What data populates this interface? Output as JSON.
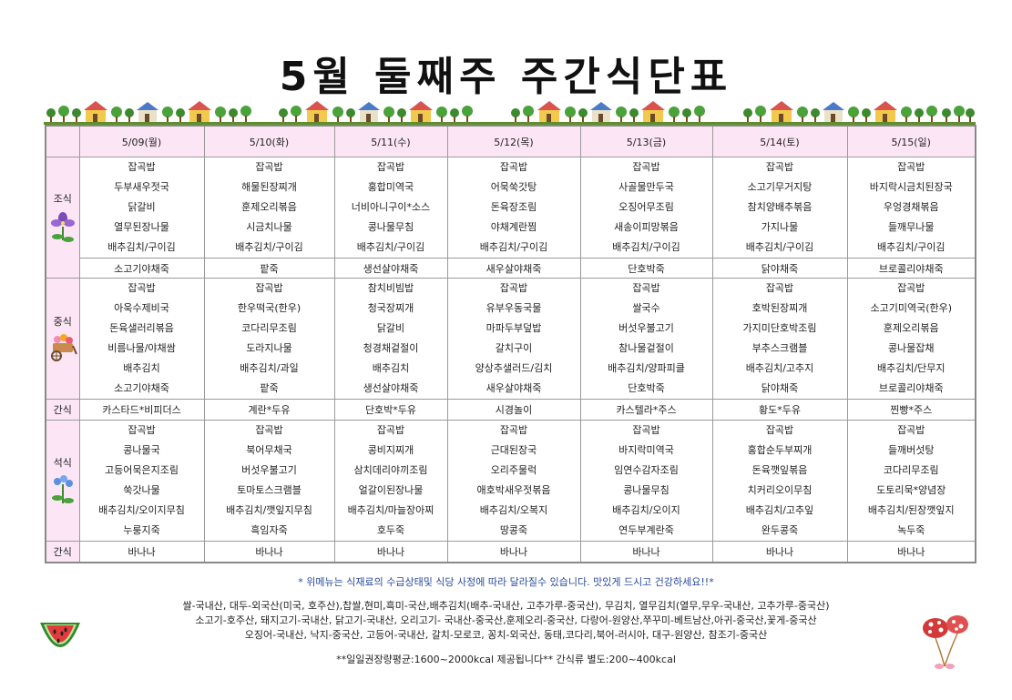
{
  "title": "5월 둘째주 주간식단표",
  "days": [
    "5/09(월)",
    "5/10(화)",
    "5/11(수)",
    "5/12(목)",
    "5/13(금)",
    "5/14(토)",
    "5/15(일)"
  ],
  "breakfast": {
    "label": "조식",
    "items": [
      [
        "잡곡밥",
        "두부새우젓국",
        "닭갈비",
        "열무된장나물",
        "배추김치/구이김"
      ],
      [
        "잡곡밥",
        "해물된장찌개",
        "훈제오리볶음",
        "시금치나물",
        "배추김치/구이김"
      ],
      [
        "잡곡밥",
        "홍합미역국",
        "너비아니구이*소스",
        "콩나물무침",
        "배추김치/구이김"
      ],
      [
        "잡곡밥",
        "어묵쑥갓탕",
        "돈육장조림",
        "야채계란찜",
        "배추김치/구이김"
      ],
      [
        "잡곡밥",
        "사골물만두국",
        "오징어무조림",
        "새송이피망볶음",
        "배추김치/구이김"
      ],
      [
        "잡곡밥",
        "소고기무거지탕",
        "참치양배추볶음",
        "가지나물",
        "배추김치/구이김"
      ],
      [
        "잡곡밥",
        "바지락시금치된장국",
        "우엉경채볶음",
        "들깨무나물",
        "배추김치/구이김"
      ]
    ],
    "porridge": [
      "소고기야채죽",
      "팥죽",
      "생선살야채죽",
      "새우살야채죽",
      "단호박죽",
      "닭야채죽",
      "브로콜리야채죽"
    ]
  },
  "lunch": {
    "label": "중식",
    "items": [
      [
        "잡곡밥",
        "아욱수제비국",
        "돈육샐러리볶음",
        "비름나물/야채쌈",
        "배추김치",
        "소고기야채죽"
      ],
      [
        "잡곡밥",
        "한우떡국(한우)",
        "코다리무조림",
        "도라지나물",
        "배추김치/과일",
        "팥죽"
      ],
      [
        "참치비빔밥",
        "청국장찌개",
        "닭갈비",
        "청경채겉절이",
        "배추김치",
        "생선살야채죽"
      ],
      [
        "잡곡밥",
        "유부우동국물",
        "마파두부덮밥",
        "갈치구이",
        "양상추샐러드/김치",
        "새우살야채죽"
      ],
      [
        "잡곡밥",
        "쌀국수",
        "버섯우불고기",
        "참나물겉절이",
        "배추김치/양파피클",
        "단호박죽"
      ],
      [
        "잡곡밥",
        "호박된장찌개",
        "가지미단호박조림",
        "부추스크램블",
        "배추김치/고추지",
        "닭야채죽"
      ],
      [
        "잡곡밥",
        "소고기미역국(한우)",
        "훈제오리볶음",
        "콩나물잡채",
        "배추김치/단무지",
        "브로콜리야채죽"
      ]
    ]
  },
  "snack1": {
    "label": "간식",
    "items": [
      "카스타드*비피더스",
      "계란*두유",
      "단호박*두유",
      "시경놀이",
      "카스텔라*주스",
      "황도*두유",
      "찐빵*주스"
    ]
  },
  "dinner": {
    "label": "석식",
    "items": [
      [
        "잡곡밥",
        "콩나물국",
        "고등어묵은지조림",
        "쑥갓나물",
        "배추김치/오이지무침",
        "누룽지죽"
      ],
      [
        "잡곡밥",
        "북어무채국",
        "버섯우불고기",
        "토마토스크램블",
        "배추김치/깻잎지무침",
        "흑임자죽"
      ],
      [
        "잡곡밥",
        "콩비지찌개",
        "삼치데리야끼조림",
        "얼갈이된장나물",
        "배추김치/마늘장아찌",
        "호두죽"
      ],
      [
        "잡곡밥",
        "근대된장국",
        "오리주물럭",
        "애호박새우젓볶음",
        "배추김치/오복지",
        "땅콩죽"
      ],
      [
        "잡곡밥",
        "바지락미역국",
        "임연수감자조림",
        "콩나물무침",
        "배추김치/오이지",
        "연두부계란죽"
      ],
      [
        "잡곡밥",
        "홍합순두부찌개",
        "돈육깻잎볶음",
        "치커리오이무침",
        "배추김치/고추잎",
        "완두콩죽"
      ],
      [
        "잡곡밥",
        "들깨버섯탕",
        "코다리무조림",
        "도토리묵*양념장",
        "배추김치/된장깻잎지",
        "녹두죽"
      ]
    ]
  },
  "snack2": {
    "label": "간식",
    "items": [
      "바나나",
      "바나나",
      "바나나",
      "바나나",
      "바나나",
      "바나나",
      "바나나"
    ]
  },
  "notice": "* 위메뉴는 식재료의 수급상태및 식당 사정에 따라 달라질수 있습니다. 맛있게 드시고 건강하세요!!*",
  "origin": [
    "쌀-국내산, 대두-외국산(미국, 호주산),찹쌀,현미,흑미-국산,배추김치(배추-국내산, 고추가루-중국산), 무김치, 열무김치(열무,무우-국내산, 고추가루-중국산)",
    "소고기-호주산, 돼지고기-국내산, 닭고기-국내산, 오리고기- 국내산-중국산,훈제오리-중국산, 다랑어-원양산,쭈꾸미-베트남산,아귀-중국산,꽃게-중국산",
    "오징어-국내산, 낙지-중국산, 고등어-국내산, 갈치-모로코, 꽁치-외국산, 동태,코다리,북어-러시아, 대구-원양산, 참조기-중국산"
  ],
  "calories": "**일일권장량평균:1600~2000kcal 제공됩니다** 간식류 별도:200~400kcal"
}
